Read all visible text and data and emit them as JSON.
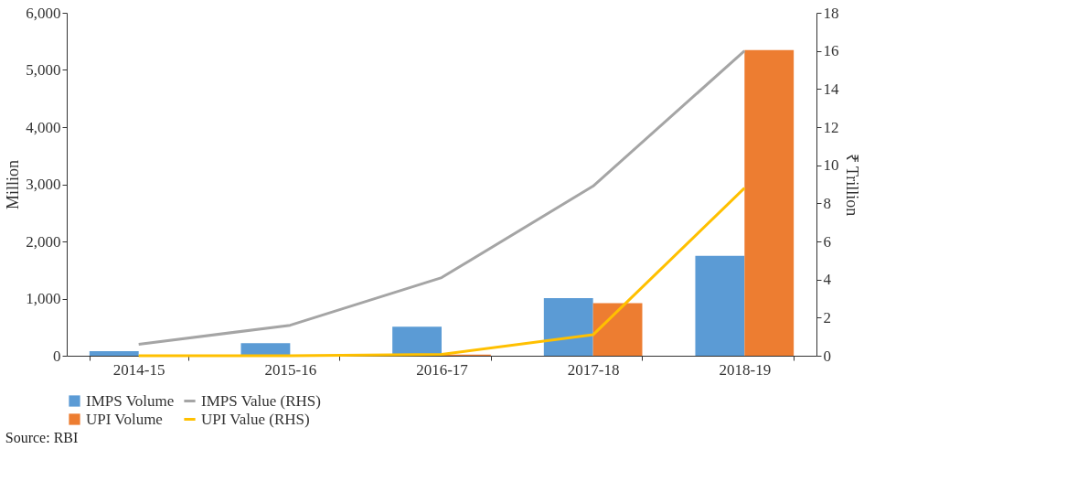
{
  "chart_data": {
    "type": "bar",
    "categories": [
      "2014-15",
      "2015-16",
      "2016-17",
      "2017-18",
      "2018-19"
    ],
    "ylabel": "Million",
    "y2label": "₹ Trillion",
    "ylim": [
      0,
      6000
    ],
    "yticks": [
      {
        "value": 0,
        "label": "0"
      },
      {
        "value": 1000,
        "label": "1,000"
      },
      {
        "value": 2000,
        "label": "2,000"
      },
      {
        "value": 3000,
        "label": "3,000"
      },
      {
        "value": 4000,
        "label": "4,000"
      },
      {
        "value": 5000,
        "label": "5,000"
      },
      {
        "value": 6000,
        "label": "6,000"
      }
    ],
    "y2lim": [
      0,
      18
    ],
    "y2ticks": [
      0,
      2,
      4,
      6,
      8,
      10,
      12,
      14,
      16,
      18
    ],
    "series": [
      {
        "name": "IMPS Volume",
        "color": "#5b9bd5",
        "values": [
          80,
          220,
          510,
          1010,
          1750
        ]
      },
      {
        "name": "UPI Volume",
        "color": "#ed7d31",
        "values": [
          0,
          0,
          20,
          920,
          5350
        ]
      },
      {
        "name": "IMPS Value (RHS)",
        "type": "line",
        "axis": "y2",
        "color": "#a5a5a5",
        "values": [
          0.6,
          1.6,
          4.1,
          8.9,
          16.0
        ]
      },
      {
        "name": "UPI Value (RHS)",
        "type": "line",
        "axis": "y2",
        "color": "#ffc000",
        "values": [
          0.0,
          0.0,
          0.07,
          1.1,
          8.8
        ]
      }
    ],
    "grid": false,
    "legend": "bottom",
    "annotations": [
      "Source: RBI"
    ]
  }
}
